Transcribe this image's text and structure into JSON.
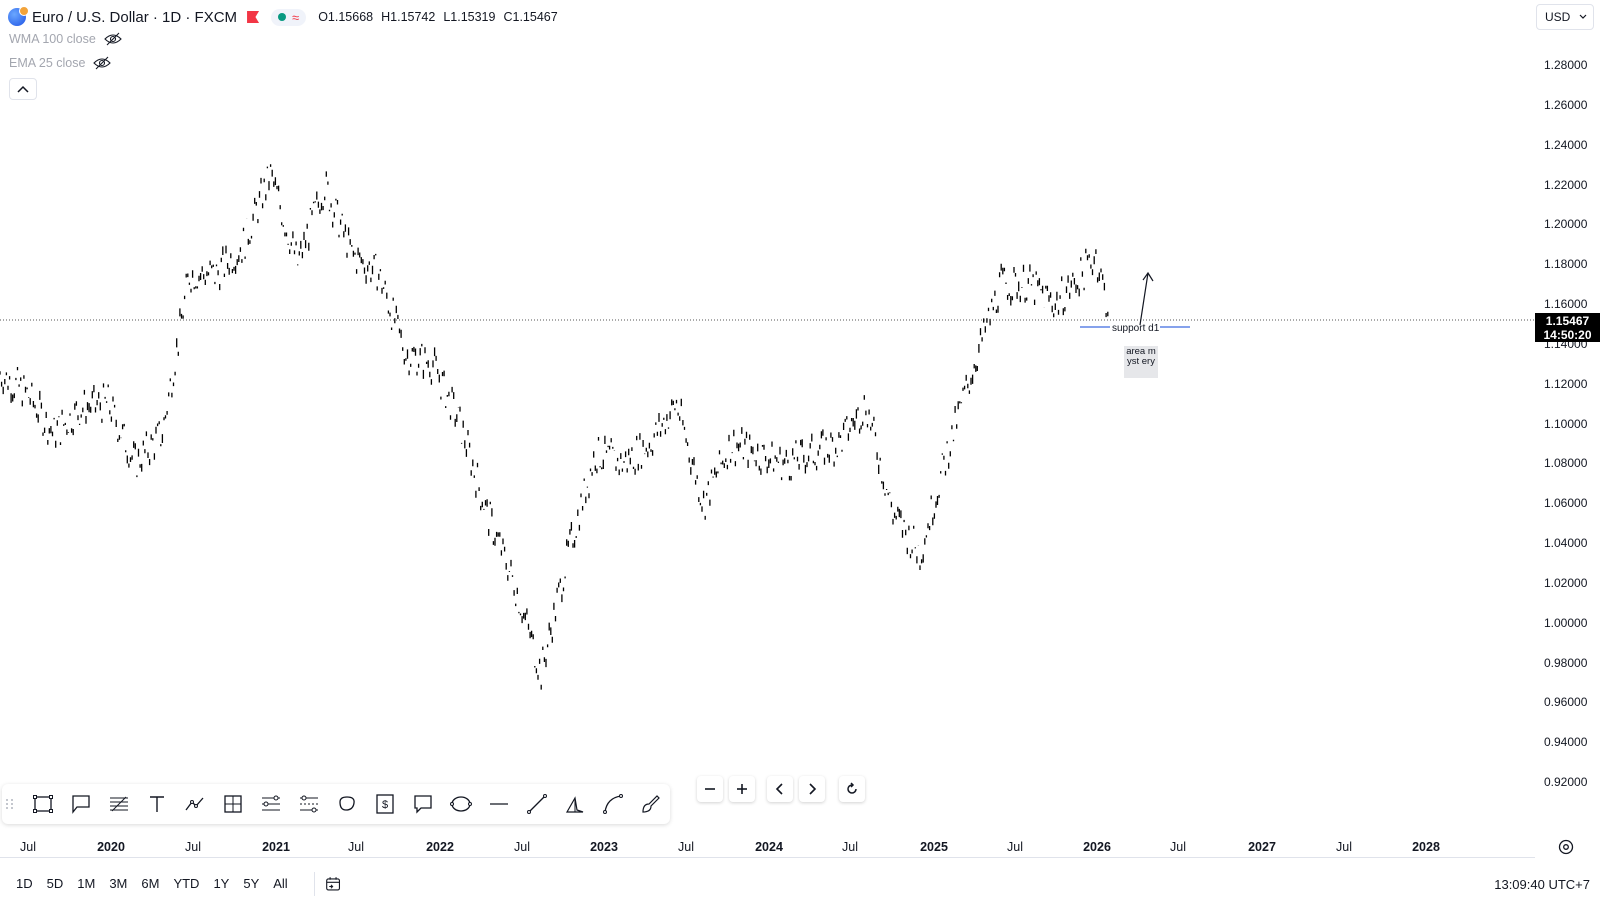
{
  "legend": {
    "symbol": "Euro / U.S. Dollar · 1D · FXCM",
    "ohlc": [
      {
        "k": "O",
        "v": "1.15668"
      },
      {
        "k": "H",
        "v": "1.15742"
      },
      {
        "k": "L",
        "v": "1.15319"
      },
      {
        "k": "C",
        "v": "1.15467"
      }
    ]
  },
  "indicators": [
    {
      "label": "WMA 100 close"
    },
    {
      "label": "EMA 25 close"
    }
  ],
  "currency": {
    "value": "USD"
  },
  "price_axis": {
    "ticks": [
      "1.28000",
      "1.26000",
      "1.24000",
      "1.22000",
      "1.20000",
      "1.18000",
      "1.16000",
      "1.14000",
      "1.12000",
      "1.10000",
      "1.08000",
      "1.06000",
      "1.04000",
      "1.02000",
      "1.00000",
      "0.98000",
      "0.96000",
      "0.94000",
      "0.92000"
    ],
    "current_price": "1.15467",
    "countdown": "14:50:20"
  },
  "time_axis": {
    "ticks": [
      {
        "label": "Jul",
        "year": false
      },
      {
        "label": "2020",
        "year": true
      },
      {
        "label": "Jul",
        "year": false
      },
      {
        "label": "2021",
        "year": true
      },
      {
        "label": "Jul",
        "year": false
      },
      {
        "label": "2022",
        "year": true
      },
      {
        "label": "Jul",
        "year": false
      },
      {
        "label": "2023",
        "year": true
      },
      {
        "label": "Jul",
        "year": false
      },
      {
        "label": "2024",
        "year": true
      },
      {
        "label": "Jul",
        "year": false
      },
      {
        "label": "2025",
        "year": true
      },
      {
        "label": "Jul",
        "year": false
      },
      {
        "label": "2026",
        "year": true
      },
      {
        "label": "Jul",
        "year": false
      },
      {
        "label": "2027",
        "year": true
      },
      {
        "label": "Jul",
        "year": false
      },
      {
        "label": "2028",
        "year": true
      }
    ]
  },
  "annotations": {
    "support_line_label": "support d1",
    "box_text": "area myst ery"
  },
  "drawing_tools": [
    {
      "icon": "rectangle-icon"
    },
    {
      "icon": "callout-icon"
    },
    {
      "icon": "fib-retracement-icon"
    },
    {
      "icon": "text-icon"
    },
    {
      "icon": "path-icon"
    },
    {
      "icon": "crosshair-frame-icon"
    },
    {
      "icon": "long-position-icon"
    },
    {
      "icon": "short-position-icon"
    },
    {
      "icon": "ellipse-icon"
    },
    {
      "icon": "price-label-icon"
    },
    {
      "icon": "comment-icon"
    },
    {
      "icon": "circle-icon"
    },
    {
      "icon": "horizontal-line-icon"
    },
    {
      "icon": "trend-line-icon"
    },
    {
      "icon": "curve-icon"
    },
    {
      "icon": "arc-icon"
    },
    {
      "icon": "brush-icon"
    }
  ],
  "nav_controls": [
    {
      "icon": "zoom-out-icon"
    },
    {
      "icon": "zoom-in-icon"
    },
    {
      "icon": "scroll-left-icon"
    },
    {
      "icon": "scroll-right-icon"
    },
    {
      "icon": "reset-icon"
    }
  ],
  "range_buttons": [
    "1D",
    "5D",
    "1M",
    "3M",
    "6M",
    "YTD",
    "1Y",
    "5Y",
    "All"
  ],
  "clock": "13:09:40 UTC+7",
  "chart_data": {
    "type": "candlestick",
    "symbol": "EURUSD",
    "timeframe": "1D",
    "ylim": [
      0.91,
      1.29
    ],
    "x_start": "2019-05",
    "x_end": "2028-04",
    "current_price": 1.15467,
    "series": [
      {
        "date": "2019-05",
        "close": 1.125
      },
      {
        "date": "2019-07",
        "close": 1.115
      },
      {
        "date": "2019-09",
        "close": 1.095
      },
      {
        "date": "2019-11",
        "close": 1.108
      },
      {
        "date": "2020-01",
        "close": 1.11
      },
      {
        "date": "2020-03",
        "close": 1.08
      },
      {
        "date": "2020-05",
        "close": 1.095
      },
      {
        "date": "2020-07",
        "close": 1.175
      },
      {
        "date": "2020-09",
        "close": 1.175
      },
      {
        "date": "2020-11",
        "close": 1.19
      },
      {
        "date": "2021-01",
        "close": 1.225
      },
      {
        "date": "2021-03",
        "close": 1.18
      },
      {
        "date": "2021-05",
        "close": 1.22
      },
      {
        "date": "2021-07",
        "close": 1.185
      },
      {
        "date": "2021-09",
        "close": 1.175
      },
      {
        "date": "2021-11",
        "close": 1.135
      },
      {
        "date": "2022-01",
        "close": 1.13
      },
      {
        "date": "2022-03",
        "close": 1.1
      },
      {
        "date": "2022-05",
        "close": 1.055
      },
      {
        "date": "2022-07",
        "close": 1.02
      },
      {
        "date": "2022-09",
        "close": 0.975
      },
      {
        "date": "2022-11",
        "close": 1.035
      },
      {
        "date": "2023-01",
        "close": 1.085
      },
      {
        "date": "2023-03",
        "close": 1.08
      },
      {
        "date": "2023-05",
        "close": 1.09
      },
      {
        "date": "2023-07",
        "close": 1.11
      },
      {
        "date": "2023-09",
        "close": 1.06
      },
      {
        "date": "2023-11",
        "close": 1.09
      },
      {
        "date": "2024-01",
        "close": 1.085
      },
      {
        "date": "2024-03",
        "close": 1.08
      },
      {
        "date": "2024-05",
        "close": 1.085
      },
      {
        "date": "2024-07",
        "close": 1.09
      },
      {
        "date": "2024-09",
        "close": 1.11
      },
      {
        "date": "2024-11",
        "close": 1.055
      },
      {
        "date": "2025-01",
        "close": 1.035
      },
      {
        "date": "2025-03",
        "close": 1.085
      },
      {
        "date": "2025-05",
        "close": 1.13
      },
      {
        "date": "2025-07",
        "close": 1.17
      },
      {
        "date": "2025-09",
        "close": 1.17
      },
      {
        "date": "2025-11",
        "close": 1.16
      },
      {
        "date": "2026-01",
        "close": 1.175
      },
      {
        "date": "2026-02",
        "close": 1.185
      },
      {
        "date": "2026-03",
        "close": 1.155
      }
    ]
  }
}
